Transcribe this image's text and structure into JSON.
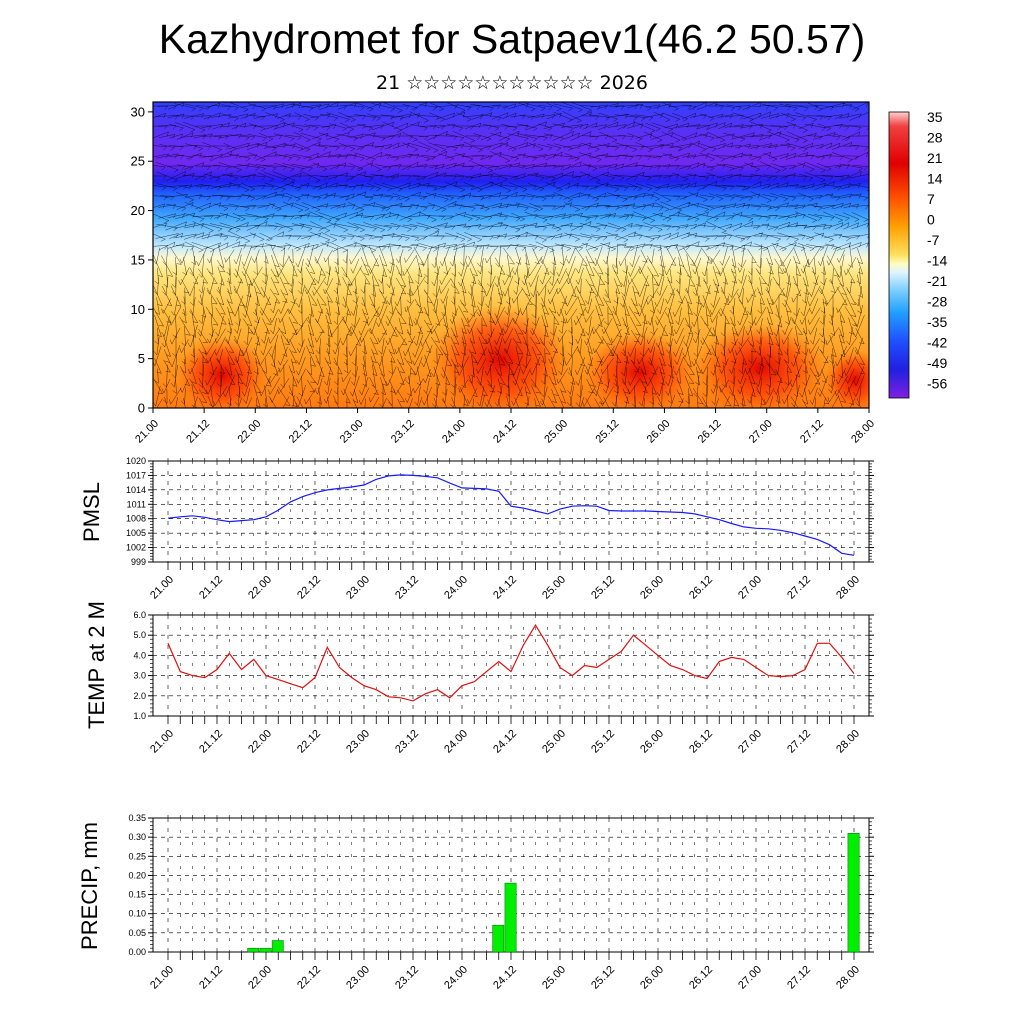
{
  "title": "Kazhydromet for Satpaev1(46.2 50.57)",
  "subtitle": "21 ☆☆☆☆☆☆☆☆☆☆☆ 2026",
  "colors": {
    "pmsl_line": "#1a1aff",
    "temp_line": "#e01010",
    "precip_bar": "#00ee00",
    "precip_bar_edge": "#006600"
  },
  "chart_data": [
    {
      "type": "heatmap",
      "name": "contour",
      "ylim": [
        0,
        31
      ],
      "yticks": [
        "0",
        "5",
        "10",
        "15",
        "20",
        "25",
        "30"
      ],
      "xticks": [
        "21.00",
        "21.12",
        "22.00",
        "22.12",
        "23.00",
        "23.12",
        "24.00",
        "24.12",
        "25.00",
        "25.12",
        "26.00",
        "26.12",
        "27.00",
        "27.12",
        "28.00"
      ],
      "colorbar_labels": [
        "35",
        "28",
        "21",
        "14",
        "7",
        "0",
        "-7",
        "-14",
        "-21",
        "-28",
        "-35",
        "-42",
        "-49",
        "-56"
      ]
    },
    {
      "type": "line",
      "name": "pmsl",
      "ylabel": "PMSL",
      "ylim": [
        999,
        1020
      ],
      "yticks": [
        "1020",
        "1017",
        "1014",
        "1011",
        "1008",
        "1005",
        "1002",
        "999"
      ],
      "xticks": [
        "21.00",
        "21.12",
        "22.00",
        "22.12",
        "23.00",
        "23.12",
        "24.00",
        "24.12",
        "25.00",
        "25.12",
        "26.00",
        "26.12",
        "27.00",
        "27.12",
        "28.00"
      ],
      "x": [
        0,
        1,
        2,
        3,
        4,
        5,
        6,
        7,
        8,
        9,
        10,
        11,
        12,
        13,
        14,
        15,
        16,
        17,
        18,
        19,
        20,
        21,
        22,
        23,
        24,
        25,
        26,
        27,
        28,
        29,
        30,
        31,
        32,
        33,
        34,
        35,
        36,
        37,
        38,
        39,
        40,
        41,
        42,
        43,
        44,
        45,
        46,
        47,
        48,
        49,
        50,
        51,
        52,
        53,
        54,
        55,
        56
      ],
      "values": [
        1008.1,
        1008.4,
        1008.6,
        1008.3,
        1007.8,
        1007.4,
        1007.6,
        1007.8,
        1008.4,
        1009.8,
        1011.5,
        1012.6,
        1013.4,
        1014.0,
        1014.3,
        1014.6,
        1015.0,
        1016.2,
        1016.9,
        1017.1,
        1017.0,
        1016.8,
        1016.5,
        1015.4,
        1014.4,
        1014.3,
        1014.2,
        1013.7,
        1010.6,
        1010.2,
        1009.6,
        1009.0,
        1010.0,
        1010.6,
        1010.7,
        1010.6,
        1009.7,
        1009.6,
        1009.6,
        1009.6,
        1009.5,
        1009.4,
        1009.3,
        1009.0,
        1008.4,
        1007.8,
        1007.0,
        1006.3,
        1006.0,
        1005.9,
        1005.6,
        1005.1,
        1004.4,
        1003.7,
        1002.6,
        1000.8,
        1000.4
      ]
    },
    {
      "type": "line",
      "name": "temp",
      "ylabel": "TEMP at 2 M",
      "ylim": [
        1.0,
        6.0
      ],
      "yticks": [
        "6.0",
        "5.0",
        "4.0",
        "3.0",
        "2.0",
        "1.0"
      ],
      "xticks": [
        "21.00",
        "21.12",
        "22.00",
        "22.12",
        "23.00",
        "23.12",
        "24.00",
        "24.12",
        "25.00",
        "25.12",
        "26.00",
        "26.12",
        "27.00",
        "27.12",
        "28.00"
      ],
      "x": [
        0,
        1,
        2,
        3,
        4,
        5,
        6,
        7,
        8,
        9,
        10,
        11,
        12,
        13,
        14,
        15,
        16,
        17,
        18,
        19,
        20,
        21,
        22,
        23,
        24,
        25,
        26,
        27,
        28,
        29,
        30,
        31,
        32,
        33,
        34,
        35,
        36,
        37,
        38,
        39,
        40,
        41,
        42,
        43,
        44,
        45,
        46,
        47,
        48,
        49,
        50,
        51,
        52,
        53,
        54,
        55,
        56
      ],
      "values": [
        4.6,
        3.2,
        3.0,
        2.9,
        3.3,
        4.1,
        3.3,
        3.8,
        3.0,
        2.8,
        2.6,
        2.4,
        2.9,
        4.4,
        3.4,
        2.9,
        2.5,
        2.3,
        1.95,
        1.9,
        1.75,
        2.1,
        2.3,
        1.9,
        2.5,
        2.7,
        3.2,
        3.7,
        3.2,
        4.5,
        5.5,
        4.5,
        3.4,
        3.0,
        3.5,
        3.4,
        3.8,
        4.2,
        5.0,
        4.5,
        4.0,
        3.5,
        3.3,
        3.0,
        2.85,
        3.7,
        3.9,
        3.8,
        3.4,
        3.0,
        2.95,
        3.0,
        3.3,
        4.6,
        4.6,
        3.9,
        3.1
      ]
    },
    {
      "type": "bar",
      "name": "precip",
      "ylabel": "PRECIP, mm",
      "ylim": [
        0,
        0.35
      ],
      "yticks": [
        "0.35",
        "0.30",
        "0.25",
        "0.20",
        "0.15",
        "0.10",
        "0.05",
        "0.00"
      ],
      "xticks": [
        "21.00",
        "21.12",
        "22.00",
        "22.12",
        "23.00",
        "23.12",
        "24.00",
        "24.12",
        "25.00",
        "25.12",
        "26.00",
        "26.12",
        "27.00",
        "27.12",
        "28.00"
      ],
      "bars": [
        {
          "x": 7,
          "value": 0.01
        },
        {
          "x": 8,
          "value": 0.01
        },
        {
          "x": 9,
          "value": 0.03
        },
        {
          "x": 27,
          "value": 0.07
        },
        {
          "x": 28,
          "value": 0.18
        },
        {
          "x": 56,
          "value": 0.31
        }
      ]
    }
  ]
}
